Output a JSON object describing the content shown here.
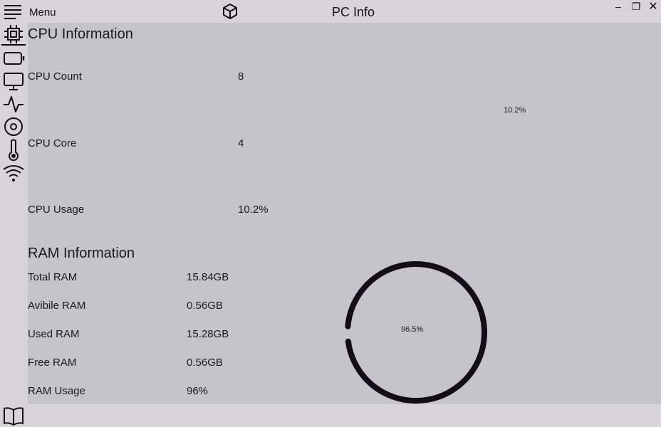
{
  "window": {
    "menu_label": "Menu",
    "title": "PC Info",
    "min_symbol": "–",
    "restore_symbol": "❐",
    "close_symbol": "✕"
  },
  "sidebar": {
    "items": [
      {
        "icon": "cpu-chip-icon"
      },
      {
        "icon": "battery-icon"
      },
      {
        "icon": "monitor-icon"
      },
      {
        "icon": "activity-pulse-icon"
      },
      {
        "icon": "disk-icon"
      },
      {
        "icon": "thermometer-icon"
      },
      {
        "icon": "wifi-icon"
      }
    ],
    "bottom_icon": "book-icon"
  },
  "cpu": {
    "title": "CPU Information",
    "rows": [
      {
        "label": "CPU Count",
        "value": "8"
      },
      {
        "label": "CPU Core",
        "value": "4"
      },
      {
        "label": "CPU Usage",
        "value": "10.2%"
      }
    ],
    "gauge_label": "10.2%",
    "gauge_percent": 10.2
  },
  "ram": {
    "title": "RAM Information",
    "rows": [
      {
        "label": "Total RAM",
        "value": "15.84GB"
      },
      {
        "label": "Avibile RAM",
        "value": "0.56GB"
      },
      {
        "label": "Used RAM",
        "value": "15.28GB"
      },
      {
        "label": "Free RAM",
        "value": "0.56GB"
      },
      {
        "label": "RAM Usage",
        "value": "96%"
      }
    ],
    "gauge_label": "96.5%",
    "gauge_percent": 96.5
  },
  "colors": {
    "content_bg": "#c5c4ca",
    "window_bg": "#d6d4da",
    "gauge_stroke": "#140d18"
  }
}
